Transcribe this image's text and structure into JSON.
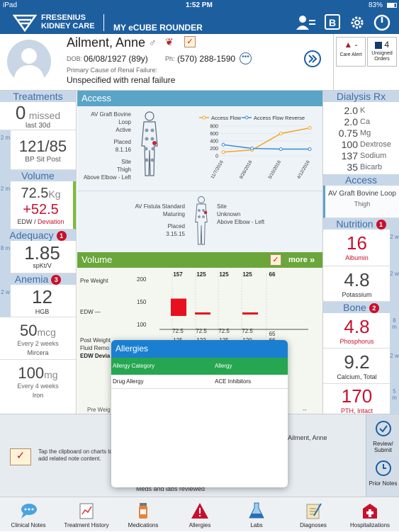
{
  "status": {
    "carrier": "iPad",
    "time": "1:52 PM",
    "battery": "83%"
  },
  "header": {
    "brand_line1": "FRESENIUS",
    "brand_line2": "KIDNEY CARE",
    "app_title": "MY eCUBE ROUNDER",
    "b_label": "B"
  },
  "patient": {
    "name": "Ailment, Anne",
    "dob_label": "DOB:",
    "dob": "06/08/1927 (89y)",
    "ph_label": "Ph:",
    "phone": "(570) 288-1590",
    "cause_label": "Primary Cause of Renal Failure:",
    "cause": "Unspecified with renal failure",
    "care_alert_value": "-",
    "care_alert_label": "Care Alert",
    "unsigned_value": "4",
    "unsigned_label": "Unsigned Orders"
  },
  "treatments": {
    "title": "Treatments",
    "missed_num": "0",
    "missed_label": "missed",
    "missed_period": "last 30d",
    "side": "2 m",
    "bp": "121/85",
    "bp_label": "BP Sit Post"
  },
  "volume_left": {
    "title": "Volume",
    "side": "2 m",
    "weight": "72.5",
    "weight_unit": "Kg",
    "deviation": "+52.5",
    "label_edw": "EDW /",
    "label_dev": "Deviation"
  },
  "adequacy": {
    "title": "Adequacy",
    "badge": "1",
    "side": "8 m",
    "value": "1.85",
    "label": "spKt/V"
  },
  "anemia": {
    "title": "Anemia",
    "badge": "3",
    "side": "2 w",
    "hgb": "12",
    "hgb_label": "HGB",
    "mircera": "50",
    "mircera_unit": "mcg",
    "mircera_freq": "Every 2 weeks",
    "mircera_label": "Mircera",
    "iron": "100",
    "iron_unit": "mg",
    "iron_freq": "Every 4 weeks",
    "iron_label": "Iron"
  },
  "access": {
    "title": "Access",
    "graft_name": "AV Graft Bovine Loop",
    "graft_status": "Active",
    "placed_label": "Placed",
    "graft_placed": "8.1.16",
    "site_label": "Site",
    "graft_site": "Thigh",
    "graft_loc": "Above Elbow - Left",
    "fistula_name": "AV Fistula Standard",
    "fistula_status": "Maturing",
    "fistula_placed": "3.15.15",
    "fistula_site": "Unknown",
    "fistula_loc": "Above Elbow - Left"
  },
  "chart_data": [
    {
      "type": "line",
      "x": [
        "11/7/2016",
        "9/26/2016",
        "5/10/2016",
        "4/12/2016"
      ],
      "series": [
        {
          "name": "Access Flow",
          "color": "#f5a623",
          "values": [
            100,
            160,
            600,
            750
          ]
        },
        {
          "name": "Access Flow Reverse",
          "color": "#3a8fd6",
          "values": [
            300,
            200,
            180,
            180
          ]
        }
      ],
      "ylim": [
        0,
        800
      ],
      "yticks": [
        0,
        200,
        400,
        600,
        800
      ]
    },
    {
      "type": "bar",
      "title": "Volume",
      "ylim": [
        100,
        200
      ],
      "yticks": [
        200,
        150,
        100
      ],
      "top_values": [
        "157",
        "125",
        "125",
        "125",
        "66"
      ],
      "edw_values": [
        "72.5",
        "72.5",
        "72.5",
        "72.5",
        "65"
      ],
      "post_values": [
        "125",
        "122",
        "125",
        "120",
        "66"
      ]
    }
  ],
  "volume_panel": {
    "title": "Volume",
    "more": "more",
    "pre_weight": "Pre Weight",
    "edw": "EDW",
    "post_weight": "Post Weight",
    "fluid_removed": "Fluid Remo",
    "edw_dev": "EDW Devia",
    "pre_weig": "Pre Weig",
    "dash": "--"
  },
  "dialysis": {
    "title": "Dialysis Rx",
    "rows": [
      {
        "v": "2.0",
        "l": "K"
      },
      {
        "v": "2.0",
        "l": "Ca"
      },
      {
        "v": "0.75",
        "l": "Mg"
      },
      {
        "v": "100",
        "l": "Dextrose"
      },
      {
        "v": "137",
        "l": "Sodium"
      },
      {
        "v": "35",
        "l": "Bicarb"
      }
    ]
  },
  "access_right": {
    "title": "Access",
    "name": "AV Graft Bovine Loop",
    "site": "Thigh"
  },
  "nutrition": {
    "title": "Nutrition",
    "badge": "1",
    "albumin": "16",
    "albumin_label": "Albumin",
    "albumin_side": "2 w",
    "potassium": "4.8",
    "potassium_label": "Potassium",
    "potassium_side": "2 w"
  },
  "bone": {
    "title": "Bone",
    "badge": "2",
    "phos": "4.8",
    "phos_label": "Phosphorus",
    "phos_side": "8 m",
    "calcium": "9.2",
    "calcium_label": "Calcium, Total",
    "calcium_side": "2 w",
    "pth": "170",
    "pth_label": "PTH, Intact",
    "pth_side": "5 m"
  },
  "allergies": {
    "title": "Allergies",
    "col1": "Allergy Category",
    "col2": "Allergy",
    "row_category": "Drug Allergy",
    "row_allergy": "ACE Inhibitors"
  },
  "notes": {
    "hint": "Tap the clipboard on charts to add related note content.",
    "patient_ref": "Ailment, Anne",
    "meds_reviewed": "Meds and labs reviewed",
    "review_label": "Review/ Submit",
    "prior_label": "Prior Notes"
  },
  "tabs": [
    "Clinical Notes",
    "Treatment History",
    "Medications",
    "Allergies",
    "Labs",
    "Diagnoses",
    "Hospitalizations"
  ]
}
